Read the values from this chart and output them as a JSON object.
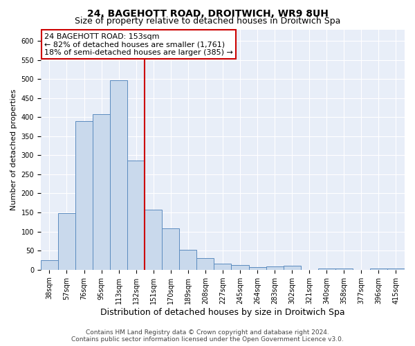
{
  "title": "24, BAGEHOTT ROAD, DROITWICH, WR9 8UH",
  "subtitle": "Size of property relative to detached houses in Droitwich Spa",
  "xlabel": "Distribution of detached houses by size in Droitwich Spa",
  "ylabel": "Number of detached properties",
  "categories": [
    "38sqm",
    "57sqm",
    "76sqm",
    "95sqm",
    "113sqm",
    "132sqm",
    "151sqm",
    "170sqm",
    "189sqm",
    "208sqm",
    "227sqm",
    "245sqm",
    "264sqm",
    "283sqm",
    "302sqm",
    "321sqm",
    "340sqm",
    "358sqm",
    "377sqm",
    "396sqm",
    "415sqm"
  ],
  "values": [
    24,
    148,
    390,
    408,
    497,
    286,
    158,
    108,
    53,
    30,
    15,
    13,
    6,
    8,
    10,
    0,
    3,
    4,
    0,
    4,
    3
  ],
  "bar_color": "#c9d9ec",
  "bar_edge_color": "#5b8bbf",
  "vline_x_index": 6,
  "vline_color": "#cc0000",
  "annotation_text": "24 BAGEHOTT ROAD: 153sqm\n← 82% of detached houses are smaller (1,761)\n18% of semi-detached houses are larger (385) →",
  "annotation_box_color": "#cc0000",
  "ylim": [
    0,
    630
  ],
  "yticks": [
    0,
    50,
    100,
    150,
    200,
    250,
    300,
    350,
    400,
    450,
    500,
    550,
    600
  ],
  "footer_line1": "Contains HM Land Registry data © Crown copyright and database right 2024.",
  "footer_line2": "Contains public sector information licensed under the Open Government Licence v3.0.",
  "background_color": "#e8eef8",
  "title_fontsize": 10,
  "subtitle_fontsize": 9,
  "tick_fontsize": 7,
  "ylabel_fontsize": 8,
  "xlabel_fontsize": 9,
  "annotation_fontsize": 8,
  "footer_fontsize": 6.5
}
